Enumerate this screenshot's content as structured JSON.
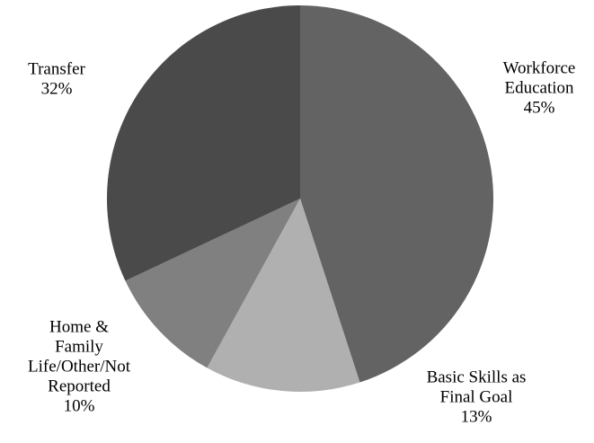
{
  "chart_data": {
    "type": "pie",
    "title": "",
    "start_angle_deg": 0,
    "direction": "clockwise",
    "slices": [
      {
        "label_lines": [
          "Workforce",
          "Education"
        ],
        "percent_label": "45%",
        "value": 45,
        "color": "#636363"
      },
      {
        "label_lines": [
          "Basic Skills as",
          "Final Goal"
        ],
        "percent_label": "13%",
        "value": 13,
        "color": "#b0b0b0"
      },
      {
        "label_lines": [
          "Home &",
          "Family",
          "Life/Other/Not",
          "Reported"
        ],
        "percent_label": "10%",
        "value": 10,
        "color": "#808080"
      },
      {
        "label_lines": [
          "Transfer"
        ],
        "percent_label": "32%",
        "value": 32,
        "color": "#4a4a4a"
      }
    ],
    "legend": "none",
    "labels_outside": true
  }
}
